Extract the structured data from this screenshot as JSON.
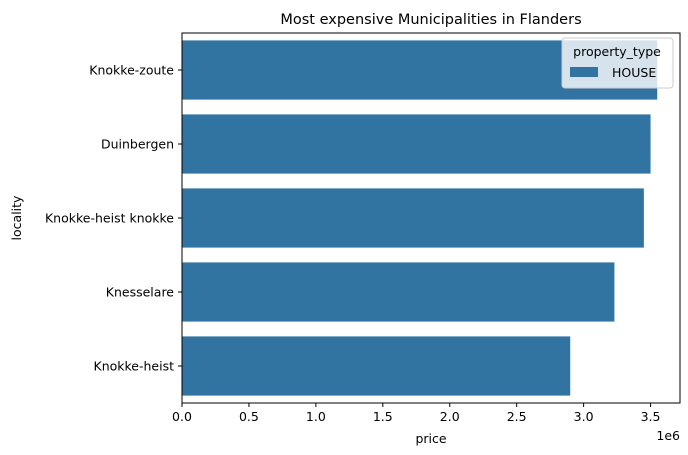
{
  "chart_data": {
    "type": "bar",
    "orientation": "horizontal",
    "title": "Most expensive Municipalities in Flanders",
    "xlabel": "price",
    "ylabel": "locality",
    "x_offset_label": "1e6",
    "xlim": [
      0,
      3.72
    ],
    "xticks": [
      "0.0",
      "0.5",
      "1.0",
      "1.5",
      "2.0",
      "2.5",
      "3.0",
      "3.5"
    ],
    "xtick_values": [
      0,
      0.5,
      1.0,
      1.5,
      2.0,
      2.5,
      3.0,
      3.5
    ],
    "categories": [
      "Knokke-zoute",
      "Duinbergen",
      "Knokke-heist knokke",
      "Knesselare",
      "Knokke-heist"
    ],
    "series": [
      {
        "name": "HOUSE",
        "values": [
          3.55,
          3.5,
          3.45,
          3.23,
          2.9
        ],
        "color": "#3274a1"
      }
    ],
    "legend": {
      "title": "property_type",
      "placement": "top-right"
    },
    "grid": false
  }
}
